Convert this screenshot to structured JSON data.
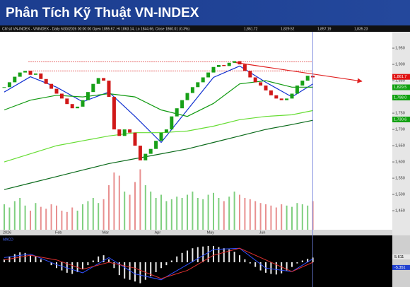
{
  "chart_data": {
    "type": "candlestick",
    "title": "Phân Tích Kỹ Thuật VN-INDEX",
    "info": "Chỉ số VN-INDEX - VNINDEX - Daily 6/30/2026 00:00:00 Open 1855.67, Hi 1863.14, Lo 1844.66, Close 1860.01 (0.3%)",
    "info_right": [
      "1,861.72",
      "1,829.52",
      "1,857.19",
      "1,835.23"
    ],
    "x_labels": [
      "2026",
      "Feb",
      "Mar",
      "Apr",
      "May",
      "Jun"
    ],
    "x_label_index": [
      0,
      10,
      19,
      29,
      39,
      49
    ],
    "closes": [
      1830,
      1845,
      1862,
      1875,
      1880,
      1868,
      1872,
      1855,
      1840,
      1825,
      1810,
      1795,
      1778,
      1765,
      1770,
      1790,
      1815,
      1840,
      1858,
      1850,
      1800,
      1700,
      1680,
      1700,
      1690,
      1650,
      1605,
      1625,
      1640,
      1665,
      1690,
      1700,
      1740,
      1765,
      1790,
      1812,
      1830,
      1845,
      1860,
      1875,
      1892,
      1898,
      1895,
      1905,
      1910,
      1900,
      1880,
      1860,
      1845,
      1835,
      1820,
      1805,
      1795,
      1790,
      1795,
      1810,
      1835,
      1850,
      1865,
      1860
    ],
    "up_color": "#18a018",
    "down_color": "#d01818",
    "ma_x": [
      0,
      5,
      10,
      15,
      20,
      25,
      30,
      35,
      40,
      45,
      50,
      55,
      59
    ],
    "series": [
      {
        "color": "#1030d0",
        "values": [
          1815,
          1862,
          1830,
          1785,
          1815,
          1740,
          1660,
          1760,
          1860,
          1895,
          1845,
          1800,
          1840
        ]
      },
      {
        "color": "#109a10",
        "values": [
          1760,
          1790,
          1805,
          1800,
          1810,
          1800,
          1760,
          1740,
          1780,
          1840,
          1850,
          1830,
          1830
        ]
      },
      {
        "color": "#66dd33",
        "values": [
          1600,
          1625,
          1650,
          1665,
          1680,
          1690,
          1690,
          1695,
          1710,
          1730,
          1740,
          1745,
          1758
        ]
      },
      {
        "color": "#0a6a1a",
        "values": [
          1515,
          1535,
          1555,
          1575,
          1595,
          1610,
          1625,
          1640,
          1660,
          1680,
          1700,
          1715,
          1728
        ]
      }
    ],
    "levels": [
      1908,
      1880
    ],
    "level_color": "#e04040",
    "ylim": [
      1398,
      1998
    ],
    "yticks": [
      {
        "value": 1450,
        "label": "1,450"
      },
      {
        "value": 1500,
        "label": "1,500"
      },
      {
        "value": 1550,
        "label": "1,550"
      },
      {
        "value": 1600,
        "label": "1,600"
      },
      {
        "value": 1650,
        "label": "1,650"
      },
      {
        "value": 1700,
        "label": "1,700"
      },
      {
        "value": 1750,
        "label": "1,750"
      },
      {
        "value": 1800,
        "label": "1,800"
      },
      {
        "value": 1850,
        "label": "1,850"
      },
      {
        "value": 1900,
        "label": "1,900"
      },
      {
        "value": 1950,
        "label": "1,950"
      }
    ],
    "price_tags": [
      {
        "value": 1861.72,
        "label": "1,861.7",
        "color": "#e01010"
      },
      {
        "value": 1829.52,
        "label": "1,829.5",
        "color": "#10a010"
      },
      {
        "value": 1798,
        "label": "1,798.0",
        "color": "#10a010"
      },
      {
        "value": 1730.6,
        "label": "1,730.6",
        "color": "#10a010"
      }
    ],
    "volume": [
      40,
      35,
      45,
      50,
      38,
      30,
      42,
      36,
      33,
      40,
      38,
      30,
      28,
      35,
      30,
      40,
      45,
      50,
      42,
      48,
      70,
      90,
      85,
      60,
      55,
      75,
      95,
      70,
      60,
      50,
      55,
      45,
      48,
      52,
      50,
      55,
      60,
      50,
      48,
      55,
      58,
      50,
      45,
      52,
      60,
      55,
      50,
      48,
      45,
      42,
      40,
      38,
      35,
      40,
      38,
      36,
      42,
      40,
      38,
      45
    ],
    "volume_lim": [
      0,
      100
    ],
    "macd": [
      5,
      10,
      14,
      17,
      16,
      12,
      10,
      5,
      0,
      -5,
      -10,
      -14,
      -18,
      -20,
      -17,
      -12,
      -5,
      3,
      10,
      12,
      5,
      -10,
      -22,
      -28,
      -30,
      -33,
      -36,
      -30,
      -24,
      -17,
      -10,
      -5,
      3,
      10,
      16,
      20,
      24,
      26,
      27,
      28,
      28,
      26,
      24,
      22,
      18,
      12,
      5,
      -2,
      -8,
      -14,
      -18,
      -20,
      -21,
      -19,
      -14,
      -8,
      -2,
      3,
      6,
      8
    ],
    "macd_line": [
      8,
      14,
      -4,
      -18,
      8,
      -20,
      -30,
      -4,
      22,
      24,
      -10,
      -16,
      6
    ],
    "signal_line": [
      4,
      12,
      4,
      -12,
      0,
      -10,
      -28,
      -14,
      12,
      24,
      4,
      -16,
      0
    ],
    "macd_lim": [
      -40,
      40
    ],
    "macd_tags": [
      {
        "value": 5.611,
        "label": "5.611"
      },
      {
        "value": -5.351,
        "label": "-5.351"
      }
    ]
  }
}
